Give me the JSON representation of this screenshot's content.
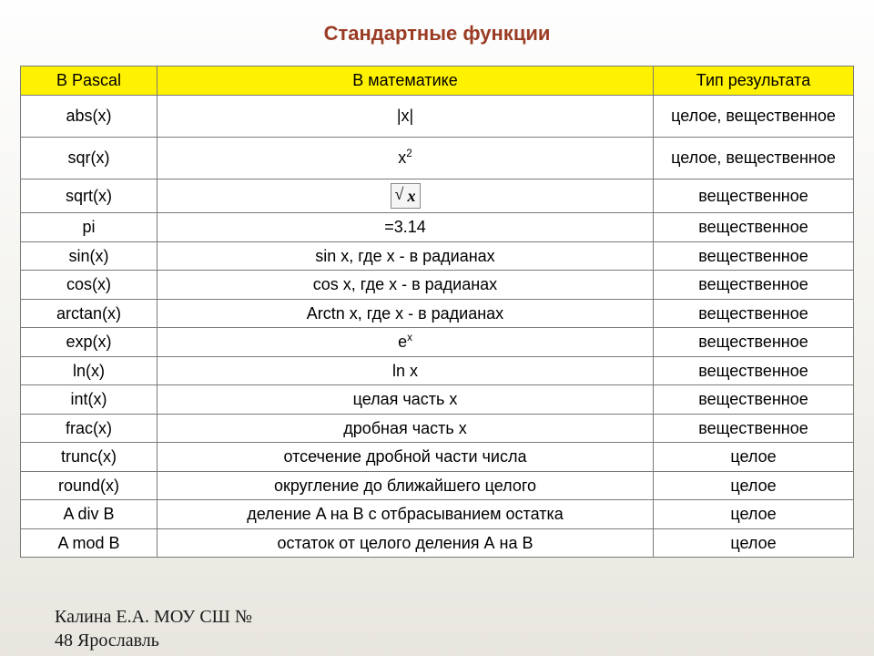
{
  "title": "Стандартные функции",
  "table": {
    "header_bg": "#fff200",
    "border_color": "#7a7a7a",
    "columns": [
      "В Pascal",
      "В математике",
      "Тип результата"
    ],
    "rows": [
      {
        "pascal": "abs(x)",
        "math_html": "|x|",
        "result": "целое, вещественное",
        "tall": true
      },
      {
        "pascal": "sqr(x)",
        "math_html": "x<sup>2</sup>",
        "result": "целое, вещественное",
        "tall": true
      },
      {
        "pascal": "sqrt(x)",
        "math_html": "<span class=\"sqrt-box\">x</span>",
        "result": "вещественное"
      },
      {
        "pascal": "pi",
        "math_html": "=3.14",
        "result": "вещественное"
      },
      {
        "pascal": "sin(x)",
        "math_html": "sin x, где х - в радианах",
        "result": "вещественное"
      },
      {
        "pascal": "cos(x)",
        "math_html": "cos x, где х - в радианах",
        "result": "вещественное"
      },
      {
        "pascal": "arctan(x)",
        "math_html": "Arctn x, где х - в радианах",
        "result": "вещественное"
      },
      {
        "pascal": "exp(x)",
        "math_html": "e<sup>x</sup>",
        "result": "вещественное"
      },
      {
        "pascal": "ln(x)",
        "math_html": "ln x",
        "result": "вещественное"
      },
      {
        "pascal": "int(x)",
        "math_html": "целая часть  x",
        "result": "вещественное"
      },
      {
        "pascal": "frac(x)",
        "math_html": "дробная часть x",
        "result": "вещественное"
      },
      {
        "pascal": "trunc(x)",
        "math_html": "отсечение дробной части числа",
        "result": "целое"
      },
      {
        "pascal": "round(x)",
        "math_html": "округление до ближайшего целого",
        "result": "целое"
      },
      {
        "pascal": "A div B",
        "math_html": "деление A на B с отбрасыванием остатка",
        "result": "целое"
      },
      {
        "pascal": "A mod B",
        "math_html": "остаток от целого деления А на В",
        "result": "целое"
      }
    ]
  },
  "footer": {
    "line1": "Калина Е.А. МОУ СШ №",
    "line2": "48 Ярославль"
  }
}
